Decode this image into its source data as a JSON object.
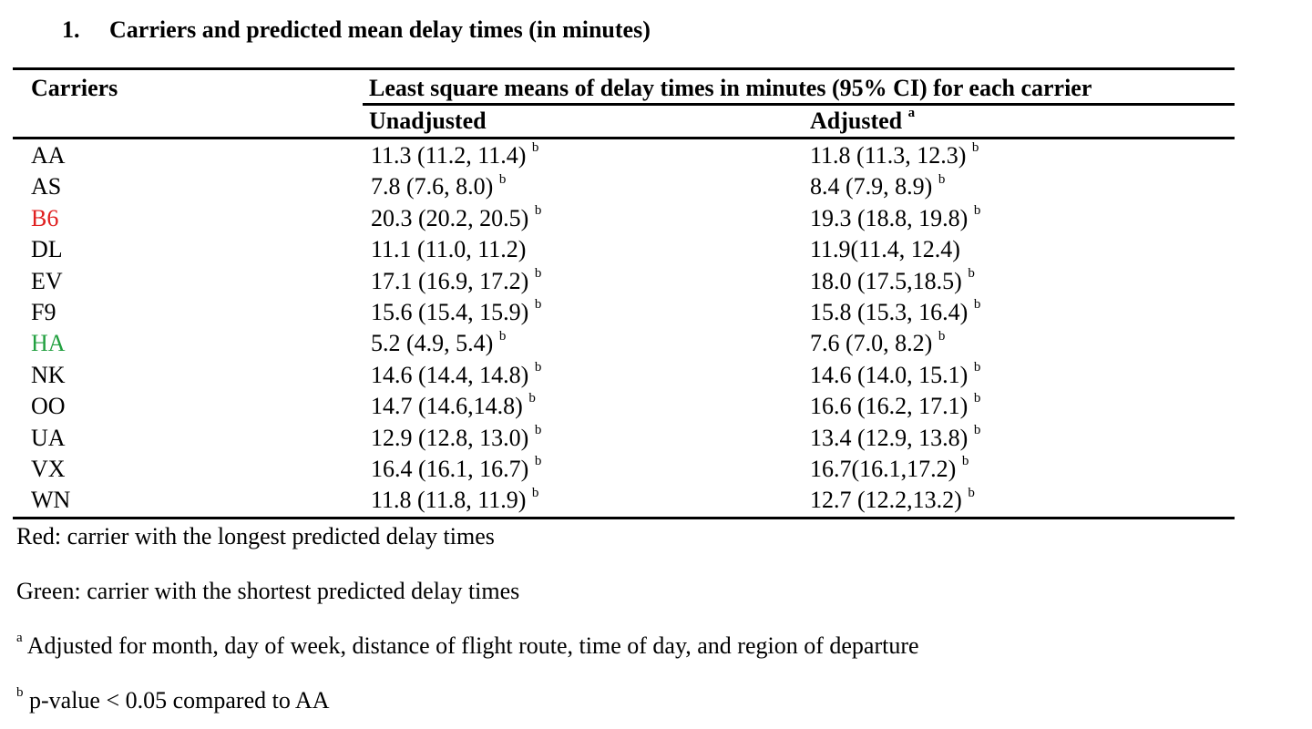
{
  "title": {
    "number": "1.",
    "text": "Carriers and predicted mean delay times (in minutes)"
  },
  "table": {
    "header_carriers": "Carriers",
    "header_group": "Least square means of delay times in minutes (95% CI) for each carrier",
    "header_unadjusted": "Unadjusted",
    "header_adjusted": "Adjusted",
    "header_adjusted_sup": "a",
    "highlight_colors": {
      "longest": "#e02020",
      "shortest": "#22a040"
    },
    "rows": [
      {
        "carrier": "AA",
        "unadjusted": "11.3 (11.2, 11.4)",
        "unadjusted_sup": "b",
        "adjusted": "11.8 (11.3, 12.3)",
        "adjusted_sup": "b"
      },
      {
        "carrier": "AS",
        "unadjusted": "7.8 (7.6, 8.0)",
        "unadjusted_sup": "b",
        "adjusted": "8.4 (7.9, 8.9)",
        "adjusted_sup": "b"
      },
      {
        "carrier": "B6",
        "unadjusted": "20.3 (20.2, 20.5)",
        "unadjusted_sup": "b",
        "adjusted": "19.3 (18.8, 19.8)",
        "adjusted_sup": "b",
        "highlight": "longest"
      },
      {
        "carrier": "DL",
        "unadjusted": "11.1 (11.0, 11.2)",
        "unadjusted_sup": "",
        "adjusted": "11.9(11.4, 12.4)",
        "adjusted_sup": ""
      },
      {
        "carrier": "EV",
        "unadjusted": "17.1 (16.9, 17.2)",
        "unadjusted_sup": "b",
        "adjusted": "18.0 (17.5,18.5)",
        "adjusted_sup": "b"
      },
      {
        "carrier": "F9",
        "unadjusted": "15.6 (15.4, 15.9)",
        "unadjusted_sup": "b",
        "adjusted": "15.8 (15.3, 16.4)",
        "adjusted_sup": "b"
      },
      {
        "carrier": "HA",
        "unadjusted": "5.2 (4.9, 5.4)",
        "unadjusted_sup": "b",
        "adjusted": "7.6 (7.0, 8.2)",
        "adjusted_sup": "b",
        "highlight": "shortest"
      },
      {
        "carrier": "NK",
        "unadjusted": "14.6 (14.4, 14.8)",
        "unadjusted_sup": "b",
        "adjusted": "14.6 (14.0, 15.1)",
        "adjusted_sup": "b"
      },
      {
        "carrier": "OO",
        "unadjusted": "14.7 (14.6,14.8)",
        "unadjusted_sup": "b",
        "adjusted": "16.6 (16.2, 17.1)",
        "adjusted_sup": "b"
      },
      {
        "carrier": "UA",
        "unadjusted": "12.9 (12.8, 13.0)",
        "unadjusted_sup": "b",
        "adjusted": "13.4 (12.9, 13.8)",
        "adjusted_sup": "b"
      },
      {
        "carrier": "VX",
        "unadjusted": "16.4 (16.1, 16.7)",
        "unadjusted_sup": "b",
        "adjusted": "16.7(16.1,17.2)",
        "adjusted_sup": "b"
      },
      {
        "carrier": "WN",
        "unadjusted": "11.8 (11.8, 11.9)",
        "unadjusted_sup": "b",
        "adjusted": "12.7 (12.2,13.2)",
        "adjusted_sup": "b"
      }
    ]
  },
  "notes": {
    "red": "Red: carrier with the longest predicted delay times",
    "green": "Green: carrier with the shortest predicted delay times",
    "a_sup": "a",
    "a_text": " Adjusted for month, day of week, distance of flight route, time of day, and region of departure",
    "b_sup": "b",
    "b_text": " p-value < 0.05 compared to AA"
  }
}
